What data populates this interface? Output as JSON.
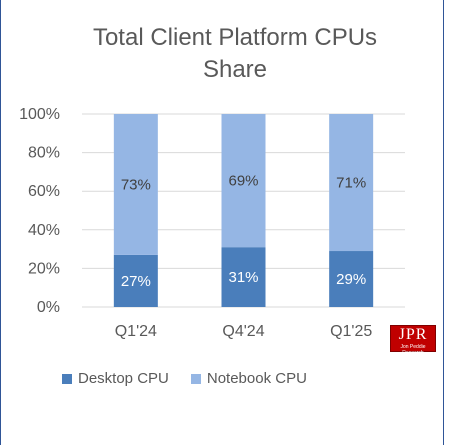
{
  "chart_data": {
    "type": "bar",
    "stacked": true,
    "title_lines": [
      "Total Client Platform CPUs",
      "Share"
    ],
    "categories": [
      "Q1'24",
      "Q4'24",
      "Q1'25"
    ],
    "series": [
      {
        "name": "Desktop CPU",
        "values": [
          27,
          31,
          29
        ],
        "labels": [
          "27%",
          "31%",
          "29%"
        ],
        "color": "#4a7ebb",
        "label_color": "#ffffff"
      },
      {
        "name": "Notebook CPU",
        "values": [
          73,
          69,
          71
        ],
        "labels": [
          "73%",
          "69%",
          "71%"
        ],
        "color": "#95b6e4",
        "label_color": "#404040"
      }
    ],
    "ylim": [
      0,
      100
    ],
    "yticks": [
      0,
      20,
      40,
      60,
      80,
      100
    ],
    "ytick_labels": [
      "0%",
      "20%",
      "40%",
      "60%",
      "80%",
      "100%"
    ],
    "grid": true,
    "legend_position": "bottom-left",
    "xlabel": "",
    "ylabel": ""
  },
  "logo": {
    "text": "JPR",
    "subtext": "Jon Peddie Research",
    "color": "#c00000"
  }
}
